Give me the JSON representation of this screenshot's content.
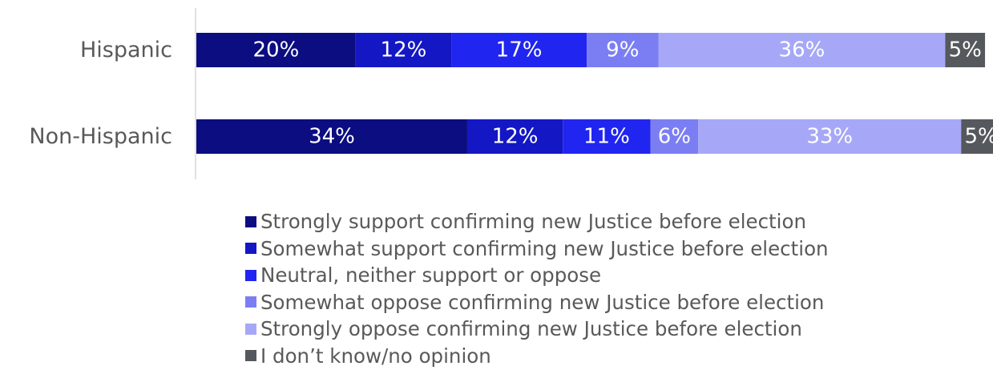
{
  "chart_data": {
    "type": "bar",
    "orientation": "horizontal",
    "stacked": true,
    "title": "",
    "xlabel": "",
    "ylabel": "",
    "xlim": [
      0,
      100
    ],
    "grid": false,
    "legend_position": "bottom",
    "categories": [
      "Hispanic",
      "Non-Hispanic"
    ],
    "series": [
      {
        "name": "Strongly support confirming new Justice before election",
        "color": "#0b0d80",
        "values": [
          20,
          34
        ],
        "labels": [
          "20%",
          "34%"
        ]
      },
      {
        "name": "Somewhat support confirming new Justice before election",
        "color": "#1417c4",
        "values": [
          12,
          12
        ],
        "labels": [
          "12%",
          "12%"
        ]
      },
      {
        "name": "Neutral, neither support or oppose",
        "color": "#2125f0",
        "values": [
          17,
          11
        ],
        "labels": [
          "17%",
          "11%"
        ]
      },
      {
        "name": "Somewhat oppose confirming new Justice before election",
        "color": "#7b7ef3",
        "values": [
          9,
          6
        ],
        "labels": [
          "9%",
          "6%"
        ]
      },
      {
        "name": "Strongly oppose confirming new Justice before election",
        "color": "#a6a8f7",
        "values": [
          36,
          33
        ],
        "labels": [
          "36%",
          "33%"
        ]
      },
      {
        "name": "I don’t know/no opinion",
        "color": "#55585c",
        "values": [
          5,
          5
        ],
        "labels": [
          "5%",
          "5%"
        ]
      }
    ]
  }
}
